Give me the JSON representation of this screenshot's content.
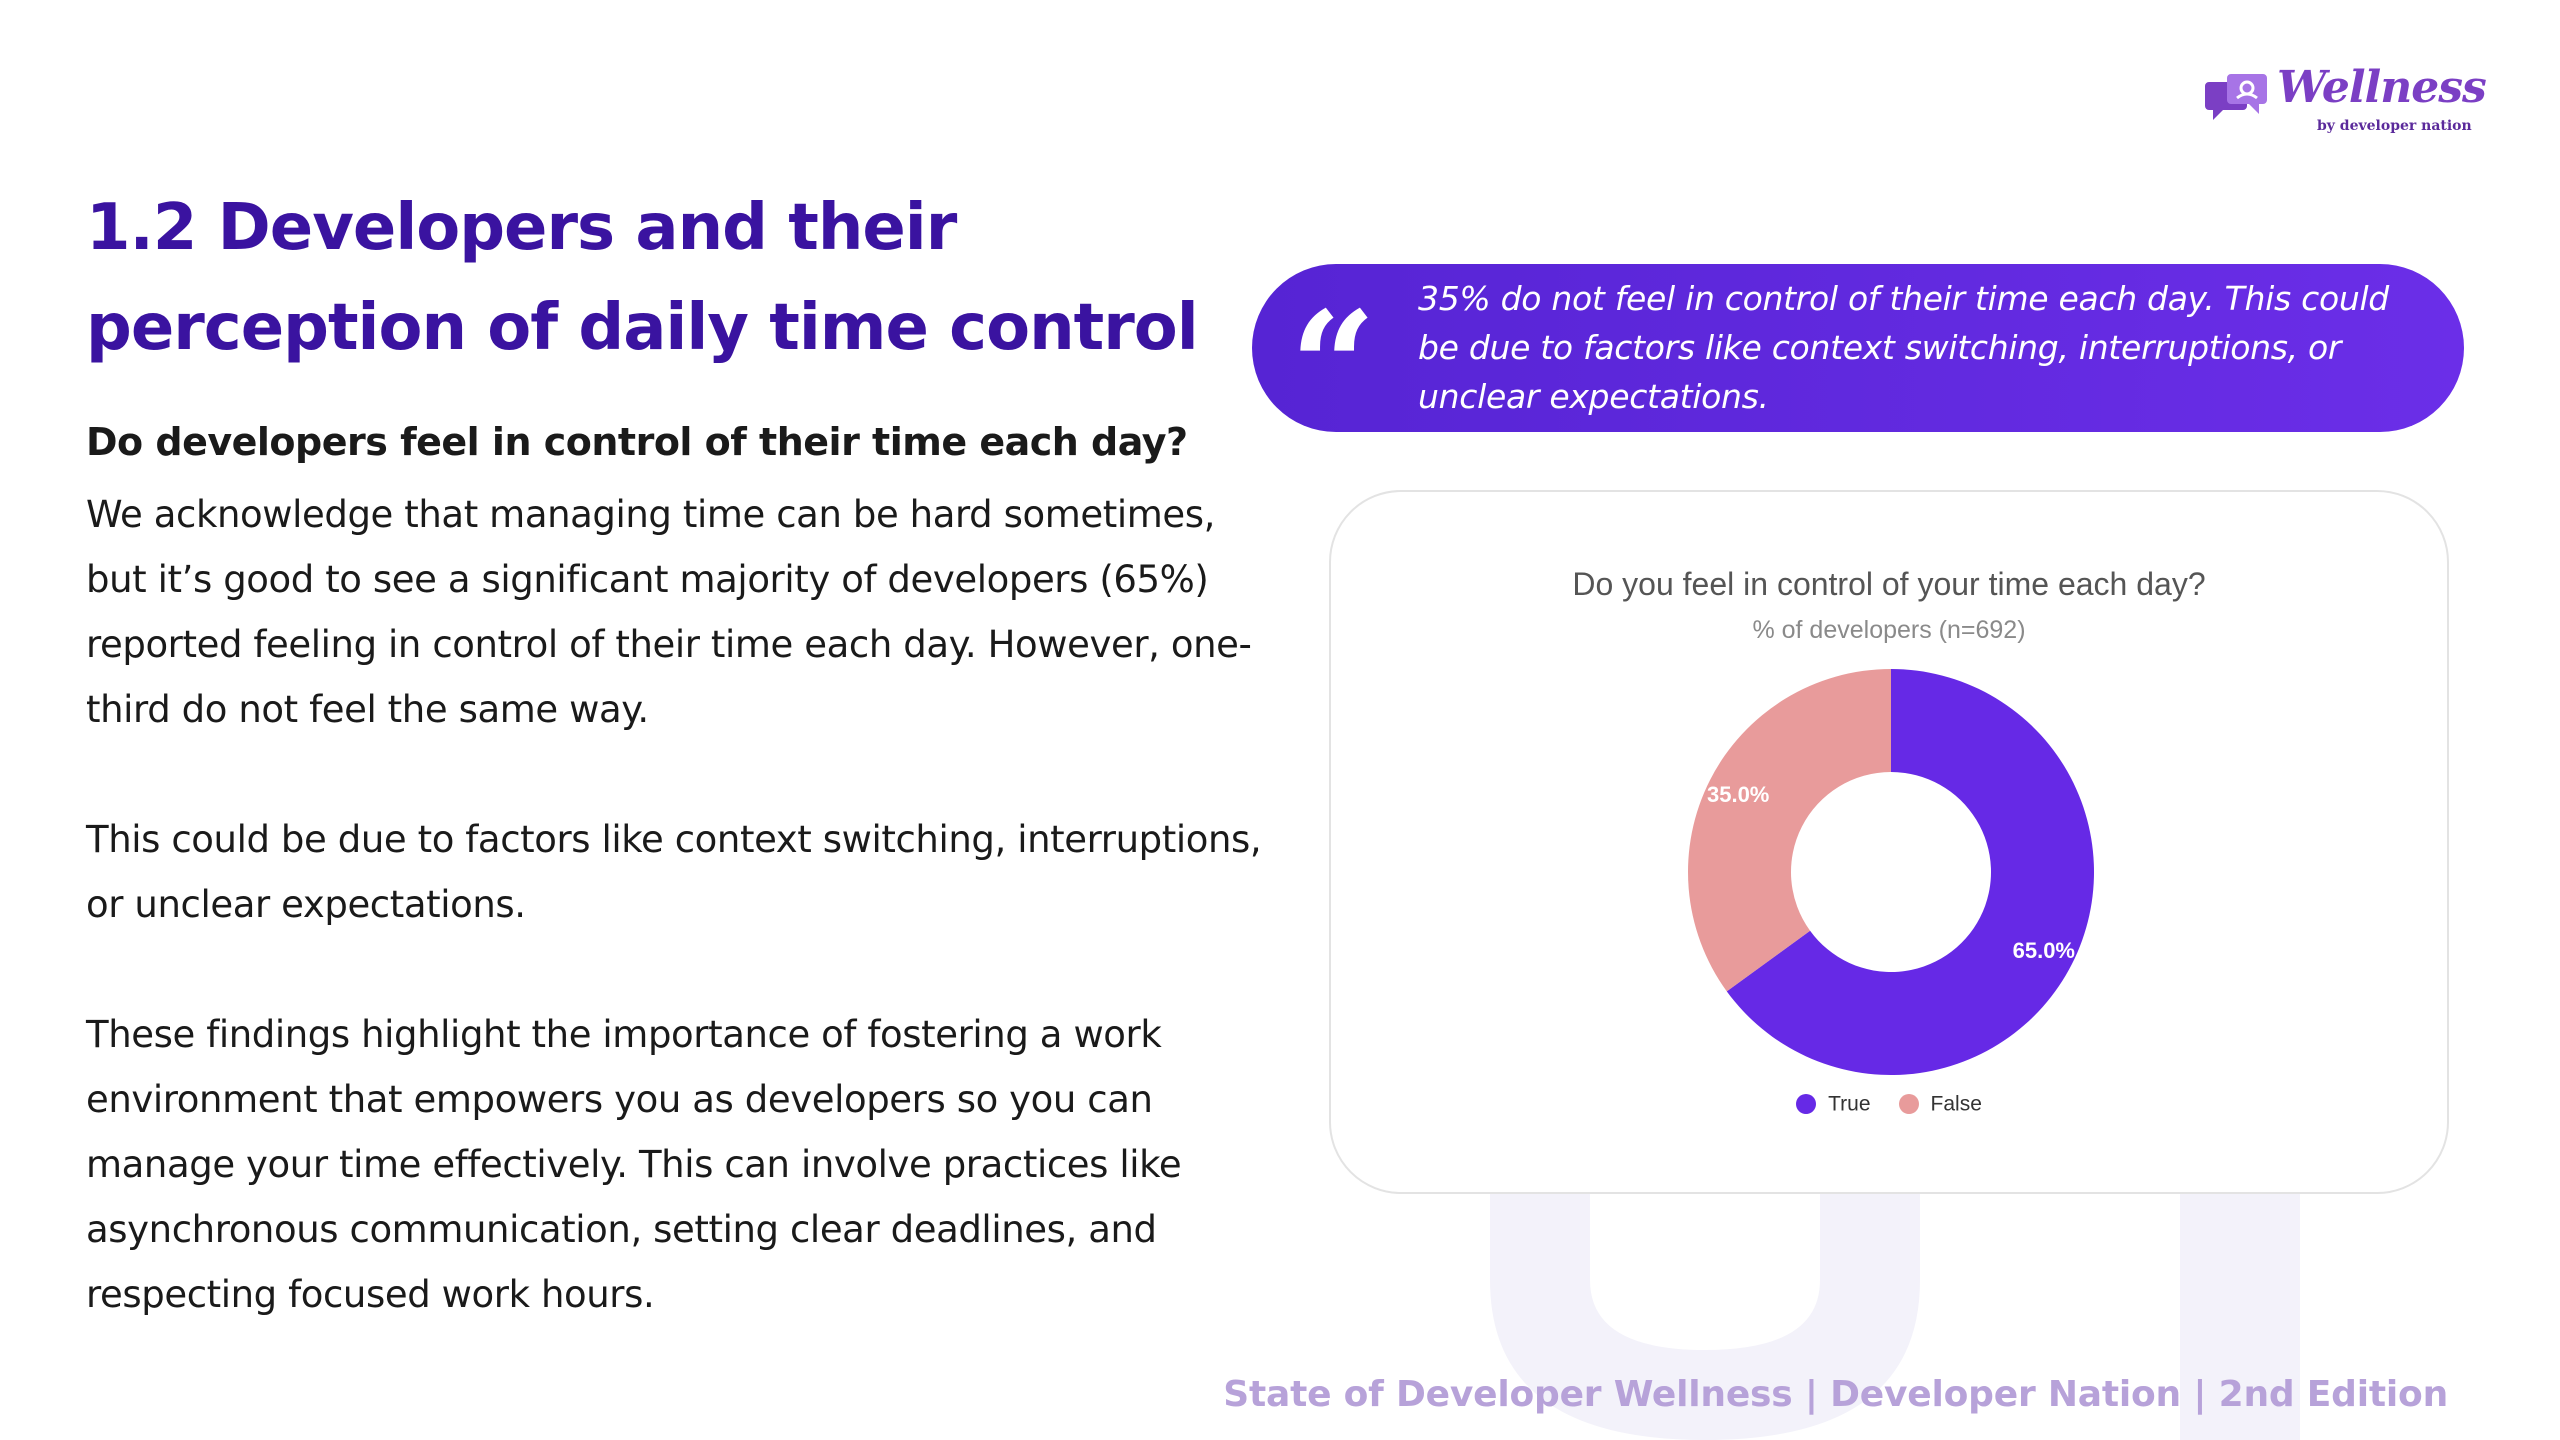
{
  "brand": {
    "logo_text": "Wellness",
    "logo_subtext": "by developer nation",
    "colors": {
      "primary": "#3a13a0",
      "accent": "#6b2ee8",
      "muted": "#b7a2d9"
    }
  },
  "page": {
    "title": "1.2 Developers and their perception of daily time control",
    "question": "Do developers feel in control of their time each day?",
    "paragraphs": [
      "We acknowledge that managing time can be hard sometimes, but it’s good to see a significant majority of developers (65%) reported feeling in control of their time each day. However, one-third do not feel the same way.",
      "This could be due to factors like context switching, interruptions, or unclear expectations.",
      "These findings highlight the importance of fostering a work environment that empowers you as developers so you can manage your time effectively. This can involve practices like asynchronous communication, setting clear deadlines, and respecting focused work hours."
    ]
  },
  "quote": {
    "mark": "“",
    "text": "35% do not feel in control of their time each day. This could be due to factors like context switching, interruptions, or unclear expectations."
  },
  "chart_data": {
    "type": "pie",
    "donut": true,
    "title": "Do you feel in control of your time each day?",
    "subtitle": "% of developers (n=692)",
    "categories": [
      "True",
      "False"
    ],
    "values": [
      65.0,
      35.0
    ],
    "data_labels": [
      "65.0%",
      "35.0%"
    ],
    "colors": [
      "#6629e6",
      "#e89b9b"
    ],
    "legend": "bottom"
  },
  "footer": {
    "text": "State of Developer Wellness | Developer Nation | 2nd Edition"
  }
}
